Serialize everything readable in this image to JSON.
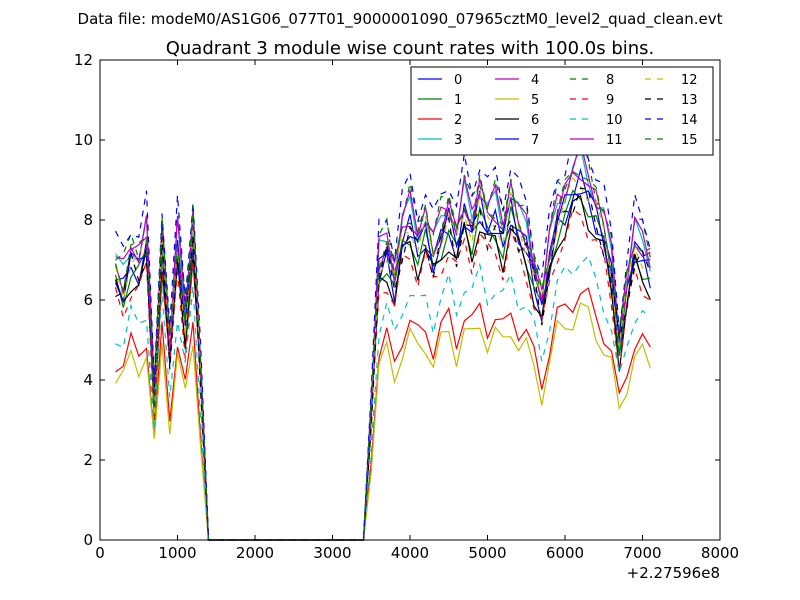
{
  "suptitle": "Data file: modeM0/AS1G06_077T01_9000001090_07965cztM0_level2_quad_clean.evt",
  "chart_data": {
    "type": "line",
    "title": "Quadrant 3 module wise count rates with 100.0s bins.",
    "xlabel": "",
    "ylabel": "",
    "x_offset_label": "+2.27596e8",
    "xlim": [
      0,
      8000
    ],
    "ylim": [
      0,
      12
    ],
    "xticks": [
      0,
      1000,
      2000,
      3000,
      4000,
      5000,
      6000,
      7000,
      8000
    ],
    "yticks": [
      0,
      2,
      4,
      6,
      8,
      10,
      12
    ],
    "grid": false,
    "legend_placement": "top-right",
    "legend_columns": 4,
    "x": [
      200,
      300,
      400,
      500,
      600,
      700,
      800,
      900,
      1000,
      1100,
      1200,
      1300,
      1400,
      1500,
      1600,
      1700,
      1800,
      1900,
      2000,
      2100,
      2200,
      2300,
      2400,
      2500,
      2600,
      2700,
      2800,
      2900,
      3000,
      3100,
      3200,
      3300,
      3400,
      3500,
      3600,
      3700,
      3800,
      3900,
      4000,
      4100,
      4200,
      4300,
      4400,
      4500,
      4600,
      4700,
      4800,
      4900,
      5000,
      5100,
      5200,
      5300,
      5400,
      5500,
      5600,
      5700,
      5800,
      5900,
      6000,
      6100,
      6200,
      6300,
      6400,
      6500,
      6600,
      6700,
      6800,
      6900,
      7000,
      7100
    ],
    "base_profile": [
      6.5,
      6.2,
      6.9,
      6.7,
      7.3,
      3.4,
      7.4,
      4.6,
      7.2,
      5.3,
      7.6,
      4.0,
      0,
      0,
      0,
      0,
      0,
      0,
      0,
      0,
      0,
      0,
      0,
      0,
      0,
      0,
      0,
      0,
      0,
      0,
      0,
      0,
      0,
      3.2,
      6.7,
      7.1,
      6.3,
      7.4,
      7.8,
      7.2,
      7.6,
      6.9,
      7.5,
      7.9,
      7.2,
      8.1,
      7.6,
      8.3,
      7.7,
      7.9,
      7.4,
      8.2,
      7.6,
      7.3,
      6.5,
      5.7,
      6.9,
      7.9,
      8.2,
      8.6,
      8.9,
      8.5,
      8.0,
      7.5,
      6.6,
      4.8,
      6.1,
      7.2,
      7.0,
      6.6
    ],
    "series": [
      {
        "name": "0",
        "color": "#0000ff",
        "dash": "solid",
        "scale": 1.0
      },
      {
        "name": "1",
        "color": "#008000",
        "dash": "solid",
        "scale": 0.98
      },
      {
        "name": "2",
        "color": "#ff0000",
        "dash": "solid",
        "scale": 0.7
      },
      {
        "name": "3",
        "color": "#00bfbf",
        "dash": "solid",
        "scale": 1.07
      },
      {
        "name": "4",
        "color": "#bf00bf",
        "dash": "solid",
        "scale": 1.05
      },
      {
        "name": "5",
        "color": "#bfbf00",
        "dash": "solid",
        "scale": 0.65
      },
      {
        "name": "6",
        "color": "#000000",
        "dash": "solid",
        "scale": 0.95
      },
      {
        "name": "7",
        "color": "#0000ff",
        "dash": "solid",
        "scale": 1.01
      },
      {
        "name": "8",
        "color": "#008000",
        "dash": "dashed",
        "scale": 1.1
      },
      {
        "name": "9",
        "color": "#ff0000",
        "dash": "dashed",
        "scale": 0.92
      },
      {
        "name": "10",
        "color": "#00bfbf",
        "dash": "dashed",
        "scale": 0.8
      },
      {
        "name": "11",
        "color": "#bf00bf",
        "dash": "solid",
        "scale": 1.08
      },
      {
        "name": "12",
        "color": "#bfbf00",
        "dash": "dashed",
        "scale": 1.02
      },
      {
        "name": "13",
        "color": "#000000",
        "dash": "dashed",
        "scale": 0.99
      },
      {
        "name": "14",
        "color": "#0000ff",
        "dash": "dashed",
        "scale": 1.15
      },
      {
        "name": "15",
        "color": "#008000",
        "dash": "dashed",
        "scale": 1.06
      }
    ]
  }
}
